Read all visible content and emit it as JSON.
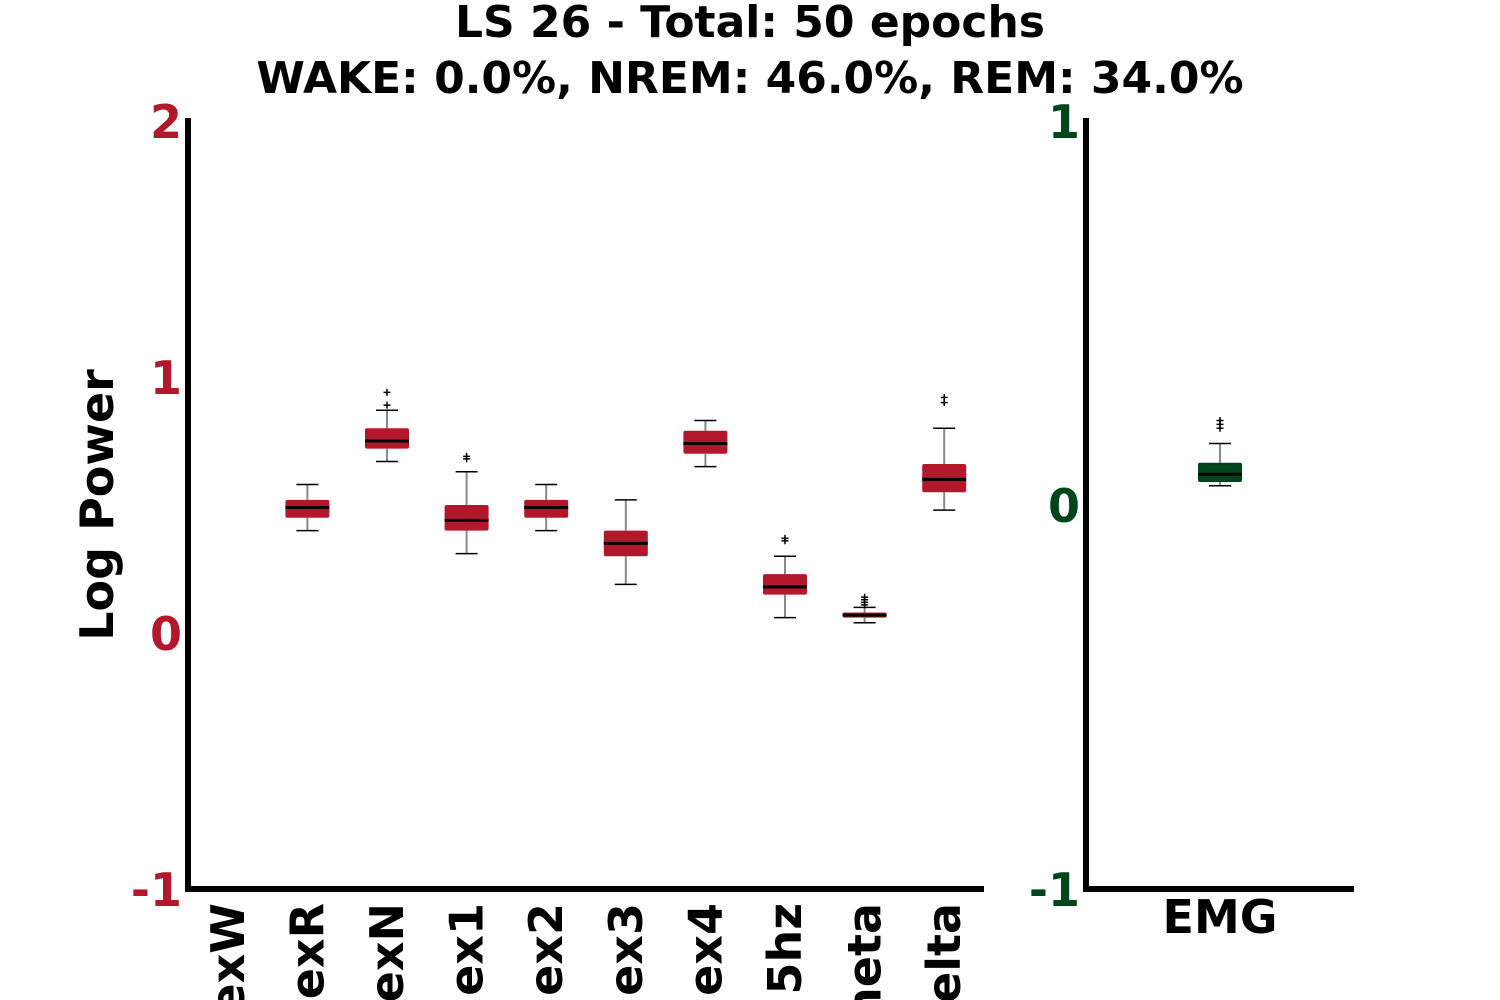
{
  "title_line1": "LS 26 - Total: 50 epochs",
  "title_line2": "WAKE: 0.0%, NREM: 46.0%, REM: 34.0%",
  "colors": {
    "eeg": "#b2182b",
    "emg": "#00441b",
    "median": "#000000",
    "whisker": "#888888"
  },
  "chart_data": [
    {
      "type": "box",
      "ylabel": "Log Power",
      "ylim": [
        -1,
        2
      ],
      "yticks": [
        "-1",
        "0",
        "1",
        "2"
      ],
      "yticks_values": [
        -1,
        0,
        1,
        2
      ],
      "grid": false,
      "categories": [
        "exW",
        "exR",
        "exN",
        "ex1",
        "ex2",
        "ex3",
        "ex4",
        "5hz",
        "neta",
        "elta"
      ],
      "boxes": [
        {
          "min": 0.4,
          "q1": 0.45,
          "median": 0.49,
          "q3": 0.52,
          "max": 0.58,
          "outliers": []
        },
        {
          "min": 0.67,
          "q1": 0.72,
          "median": 0.75,
          "q3": 0.8,
          "max": 0.87,
          "outliers": [
            0.89,
            0.94
          ]
        },
        {
          "min": 0.31,
          "q1": 0.4,
          "median": 0.44,
          "q3": 0.5,
          "max": 0.63,
          "outliers": [
            0.68,
            0.69
          ]
        },
        {
          "min": 0.4,
          "q1": 0.45,
          "median": 0.49,
          "q3": 0.52,
          "max": 0.58,
          "outliers": []
        },
        {
          "min": 0.19,
          "q1": 0.3,
          "median": 0.35,
          "q3": 0.4,
          "max": 0.52,
          "outliers": []
        },
        {
          "min": 0.65,
          "q1": 0.7,
          "median": 0.74,
          "q3": 0.79,
          "max": 0.83,
          "outliers": []
        },
        {
          "min": 0.06,
          "q1": 0.15,
          "median": 0.18,
          "q3": 0.23,
          "max": 0.3,
          "outliers": [
            0.36,
            0.37
          ]
        },
        {
          "min": 0.04,
          "q1": 0.06,
          "median": 0.07,
          "q3": 0.08,
          "max": 0.1,
          "outliers": [
            0.11,
            0.12,
            0.13,
            0.14
          ]
        },
        {
          "min": 0.48,
          "q1": 0.55,
          "median": 0.6,
          "q3": 0.66,
          "max": 0.8,
          "outliers": [
            0.9,
            0.92
          ]
        }
      ],
      "box_category_indices": [
        1,
        2,
        3,
        4,
        5,
        6,
        7,
        8,
        9
      ]
    },
    {
      "type": "box",
      "ylim": [
        -1,
        1
      ],
      "yticks": [
        "-1",
        "0",
        "1"
      ],
      "yticks_values": [
        -1,
        0,
        1
      ],
      "grid": false,
      "categories": [
        "EMG"
      ],
      "boxes": [
        {
          "min": 0.05,
          "q1": 0.06,
          "median": 0.08,
          "q3": 0.11,
          "max": 0.16,
          "outliers": [
            0.2,
            0.21,
            0.22
          ]
        }
      ],
      "box_category_indices": [
        0
      ]
    }
  ]
}
